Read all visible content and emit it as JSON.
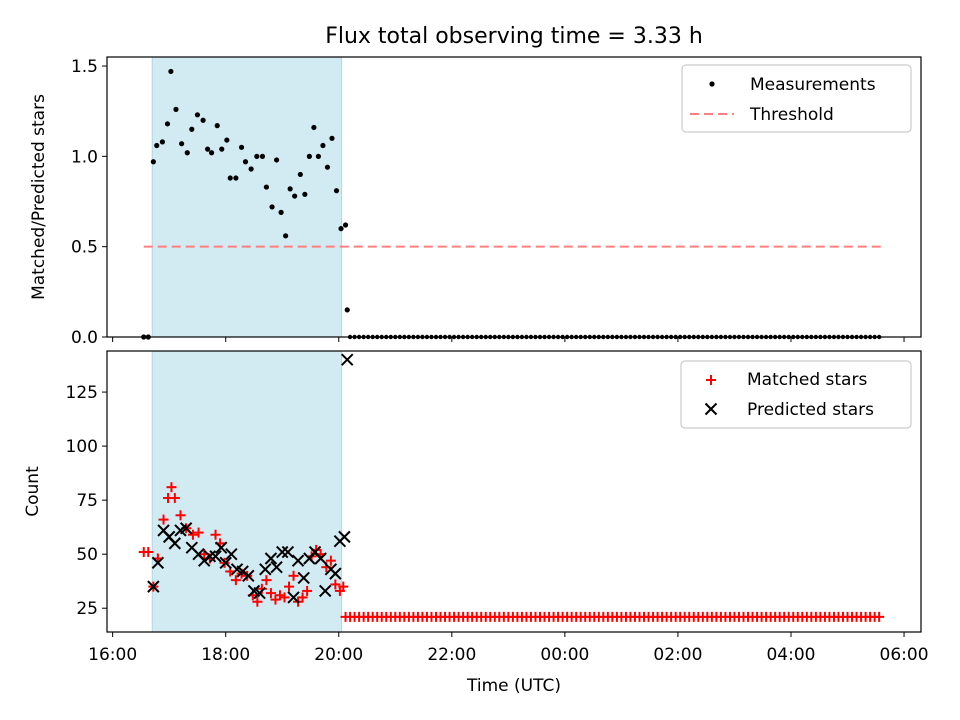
{
  "title": "Flux total observing time = 3.33 h",
  "xlabel": "Time (UTC)",
  "colors": {
    "shade": "#add8e6",
    "threshold": "#ff7f7f",
    "matched": "#ff0000",
    "predicted": "#000000",
    "measure": "#000000"
  },
  "chart_data": [
    {
      "type": "scatter",
      "name": "ratio-panel",
      "ylabel": "Matched/Predicted stars",
      "ylim": [
        0,
        1.55
      ],
      "yticks": [
        0.0,
        0.5,
        1.0,
        1.5
      ],
      "ytick_labels": [
        "0.0",
        "0.5",
        "1.0",
        "1.5"
      ],
      "shaded_region_hours": [
        16.7,
        20.05
      ],
      "threshold": {
        "value": 0.5,
        "x_range_hours": [
          16.55,
          29.65
        ]
      },
      "legend": {
        "position": "top-right",
        "entries": [
          "Measurements",
          "Threshold"
        ]
      },
      "series": [
        {
          "name": "Measurements",
          "x": [
            16.55,
            16.63,
            16.72,
            16.78,
            16.88,
            16.97,
            17.03,
            17.12,
            17.22,
            17.32,
            17.4,
            17.5,
            17.6,
            17.68,
            17.75,
            17.85,
            17.93,
            18.02,
            18.08,
            18.18,
            18.28,
            18.35,
            18.45,
            18.55,
            18.65,
            18.72,
            18.82,
            18.9,
            18.98,
            19.06,
            19.14,
            19.22,
            19.32,
            19.4,
            19.48,
            19.56,
            19.64,
            19.72,
            19.8,
            19.88,
            19.96,
            20.04,
            20.12
          ],
          "y": [
            0.0,
            0.0,
            0.97,
            1.06,
            1.08,
            1.18,
            1.47,
            1.26,
            1.07,
            1.02,
            1.15,
            1.23,
            1.2,
            1.04,
            1.02,
            1.17,
            1.04,
            1.09,
            0.88,
            0.88,
            1.05,
            0.97,
            0.93,
            1.0,
            1.0,
            0.83,
            0.72,
            0.98,
            0.69,
            0.56,
            0.82,
            0.78,
            0.9,
            0.79,
            1.0,
            1.16,
            1.0,
            1.06,
            0.94,
            1.1,
            0.81,
            0.6,
            0.62
          ],
          "extra_points": [
            [
              20.15,
              0.15
            ]
          ],
          "zero_line_x_range_hours": [
            20.2,
            29.6
          ]
        }
      ]
    },
    {
      "type": "scatter",
      "name": "count-panel",
      "ylabel": "Count",
      "ylim": [
        14,
        144
      ],
      "yticks": [
        25,
        50,
        75,
        100,
        125
      ],
      "ytick_labels": [
        "25",
        "50",
        "75",
        "100",
        "125"
      ],
      "xlim_hours": [
        15.9,
        30.3
      ],
      "xticks_hours": [
        16,
        18,
        20,
        22,
        24,
        26,
        28,
        30
      ],
      "xtick_labels": [
        "16:00",
        "18:00",
        "20:00",
        "22:00",
        "00:00",
        "02:00",
        "04:00",
        "06:00"
      ],
      "shaded_region_hours": [
        16.7,
        20.05
      ],
      "legend": {
        "position": "top-right",
        "entries": [
          "Matched stars",
          "Predicted stars"
        ]
      },
      "series": [
        {
          "name": "Matched stars",
          "marker": "plus",
          "x": [
            16.55,
            16.63,
            16.72,
            16.8,
            16.9,
            16.98,
            17.04,
            17.1,
            17.2,
            17.3,
            17.42,
            17.52,
            17.62,
            17.72,
            17.82,
            17.9,
            17.98,
            18.08,
            18.18,
            18.28,
            18.38,
            18.48,
            18.56,
            18.64,
            18.72,
            18.8,
            18.88,
            18.96,
            19.04,
            19.12,
            19.2,
            19.28,
            19.36,
            19.44,
            19.52,
            19.6,
            19.68,
            19.78,
            19.86,
            19.94,
            20.02,
            20.08
          ],
          "y": [
            51,
            51,
            35,
            48,
            66,
            76,
            81,
            76,
            68,
            62,
            59,
            60,
            50,
            48,
            59,
            55,
            46,
            42,
            38,
            41,
            40,
            31,
            28,
            34,
            38,
            32,
            29,
            31,
            30,
            35,
            40,
            28,
            30,
            33,
            49,
            52,
            50,
            44,
            47,
            36,
            33,
            35
          ],
          "zero_line": {
            "value": 21,
            "x_range_hours": [
              20.12,
              29.6
            ]
          }
        },
        {
          "name": "Predicted stars",
          "marker": "x",
          "x": [
            16.72,
            16.8,
            16.9,
            17.0,
            17.1,
            17.2,
            17.3,
            17.4,
            17.52,
            17.62,
            17.72,
            17.82,
            17.92,
            18.0,
            18.1,
            18.2,
            18.3,
            18.4,
            18.5,
            18.6,
            18.7,
            18.8,
            18.9,
            19.0,
            19.1,
            19.2,
            19.28,
            19.38,
            19.48,
            19.58,
            19.68,
            19.76,
            19.86,
            19.94,
            20.02,
            20.1,
            20.15
          ],
          "y": [
            35,
            46,
            61,
            58,
            55,
            61,
            62,
            53,
            50,
            47,
            49,
            49,
            53,
            46,
            50,
            43,
            42,
            40,
            33,
            32,
            43,
            48,
            44,
            51,
            51,
            30,
            47,
            39,
            48,
            51,
            48,
            33,
            43,
            41,
            56,
            58,
            140
          ]
        }
      ]
    }
  ]
}
